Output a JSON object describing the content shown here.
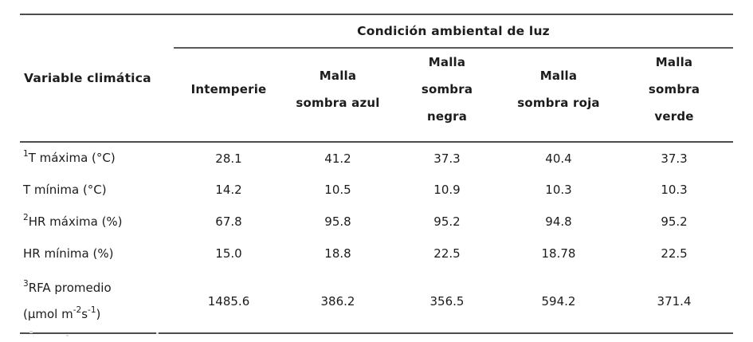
{
  "table": {
    "span_header": "Condición ambiental de luz",
    "variable_header": "Variable climática",
    "columns": [
      {
        "name": "Intemperie",
        "lines": [
          "Intemperie"
        ]
      },
      {
        "name": "Malla sombra azul",
        "lines": [
          "Malla",
          "sombra azul"
        ]
      },
      {
        "name": "Malla sombra negra",
        "lines": [
          "Malla",
          "sombra",
          "negra"
        ]
      },
      {
        "name": "Malla sombra roja",
        "lines": [
          "Malla",
          "sombra roja"
        ]
      },
      {
        "name": "Malla sombra verde",
        "lines": [
          "Malla",
          "sombra",
          "verde"
        ]
      }
    ],
    "rows": [
      {
        "label_plain": "1T máxima (°C)",
        "label_lines": [
          [
            {
              "text": "1",
              "sup": true
            },
            {
              "text": "T máxima (°C)"
            }
          ]
        ],
        "values": [
          "28.1",
          "41.2",
          "37.3",
          "40.4",
          "37.3"
        ]
      },
      {
        "label_plain": "T mínima (°C)",
        "label_lines": [
          [
            {
              "text": "T mínima (°C)"
            }
          ]
        ],
        "values": [
          "14.2",
          "10.5",
          "10.9",
          "10.3",
          "10.3"
        ]
      },
      {
        "label_plain": "2HR máxima (%)",
        "label_lines": [
          [
            {
              "text": "2",
              "sup": true
            },
            {
              "text": "HR máxima (%)"
            }
          ]
        ],
        "values": [
          "67.8",
          "95.8",
          "95.2",
          "94.8",
          "95.2"
        ]
      },
      {
        "label_plain": "HR mínima (%)",
        "label_lines": [
          [
            {
              "text": "HR mínima (%)"
            }
          ]
        ],
        "values": [
          "15.0",
          "18.8",
          "22.5",
          "18.78",
          "22.5"
        ]
      },
      {
        "label_plain": "3RFA promedio (µmol m-2s-1)",
        "label_lines": [
          [
            {
              "text": "3",
              "sup": true
            },
            {
              "text": "RFA promedio"
            }
          ],
          [
            {
              "text": "(µmol m"
            },
            {
              "text": "-2",
              "sup": true
            },
            {
              "text": "s"
            },
            {
              "text": "-1",
              "sup": true
            },
            {
              "text": ")"
            }
          ]
        ],
        "values": [
          "1485.6",
          "386.2",
          "356.5",
          "594.2",
          "371.4"
        ],
        "tall": true
      }
    ],
    "colors": {
      "rule": "#4d4d4d",
      "text": "#1c1c1c",
      "background": "#ffffff"
    }
  }
}
